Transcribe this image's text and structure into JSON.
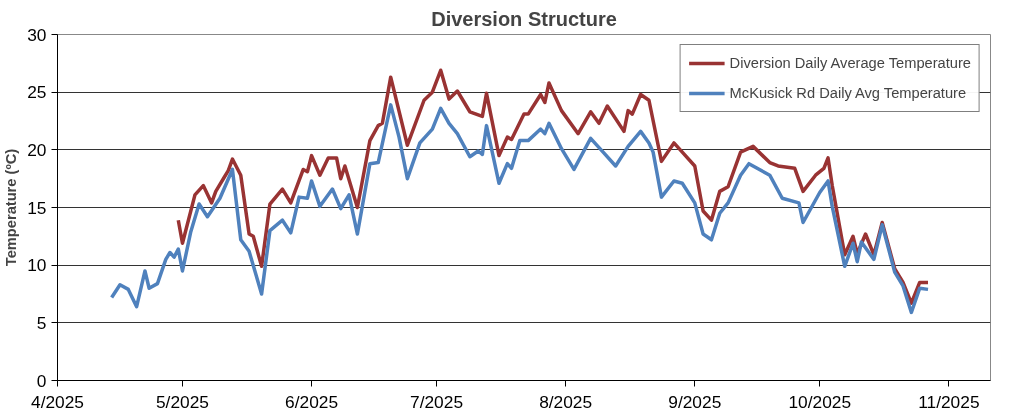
{
  "chart_data": {
    "type": "line",
    "title": "Diversion Structure",
    "ylabel": "Temperature (ºC)",
    "xlim": [
      "2025-04-01",
      "2025-11-11"
    ],
    "xticks": [
      {
        "value": "2025-04-01",
        "label": "4/2025"
      },
      {
        "value": "2025-05-01",
        "label": "5/2025"
      },
      {
        "value": "2025-06-01",
        "label": "6/2025"
      },
      {
        "value": "2025-07-01",
        "label": "7/2025"
      },
      {
        "value": "2025-08-01",
        "label": "8/2025"
      },
      {
        "value": "2025-09-01",
        "label": "9/2025"
      },
      {
        "value": "2025-10-01",
        "label": "10/2025"
      },
      {
        "value": "2025-11-01",
        "label": "11/2025"
      }
    ],
    "ylim": [
      0,
      30
    ],
    "yticks": [
      0,
      5,
      10,
      15,
      20,
      25,
      30
    ],
    "grid": "y",
    "legend": "top right",
    "series": [
      {
        "name": "Diversion Daily Average Temperature",
        "color": "#993333",
        "x": [
          "2025-04-30",
          "2025-05-01",
          "2025-05-04",
          "2025-05-06",
          "2025-05-08",
          "2025-05-09",
          "2025-05-11",
          "2025-05-12",
          "2025-05-13",
          "2025-05-15",
          "2025-05-17",
          "2025-05-18",
          "2025-05-20",
          "2025-05-22",
          "2025-05-25",
          "2025-05-27",
          "2025-05-30",
          "2025-05-31",
          "2025-06-01",
          "2025-06-03",
          "2025-06-05",
          "2025-06-07",
          "2025-06-08",
          "2025-06-09",
          "2025-06-12",
          "2025-06-15",
          "2025-06-17",
          "2025-06-18",
          "2025-06-20",
          "2025-06-24",
          "2025-06-28",
          "2025-06-30",
          "2025-07-02",
          "2025-07-04",
          "2025-07-06",
          "2025-07-09",
          "2025-07-12",
          "2025-07-13",
          "2025-07-16",
          "2025-07-18",
          "2025-07-19",
          "2025-07-22",
          "2025-07-23",
          "2025-07-26",
          "2025-07-27",
          "2025-07-28",
          "2025-07-31",
          "2025-08-04",
          "2025-08-07",
          "2025-08-09",
          "2025-08-11",
          "2025-08-15",
          "2025-08-16",
          "2025-08-17",
          "2025-08-19",
          "2025-08-21",
          "2025-08-24",
          "2025-08-27",
          "2025-08-29",
          "2025-09-01",
          "2025-09-03",
          "2025-09-05",
          "2025-09-07",
          "2025-09-09",
          "2025-09-12",
          "2025-09-15",
          "2025-09-19",
          "2025-09-21",
          "2025-09-25",
          "2025-09-27",
          "2025-09-30",
          "2025-10-02",
          "2025-10-03",
          "2025-10-04",
          "2025-10-07",
          "2025-10-09",
          "2025-10-10",
          "2025-10-12",
          "2025-10-14",
          "2025-10-16",
          "2025-10-19",
          "2025-10-21",
          "2025-10-23",
          "2025-10-25",
          "2025-10-27"
        ],
        "values": [
          13.9,
          11.9,
          16.1,
          16.9,
          15.4,
          16.4,
          17.6,
          18.2,
          19.2,
          17.8,
          12.7,
          12.5,
          9.9,
          15.3,
          16.6,
          15.4,
          18.3,
          18.1,
          19.5,
          17.8,
          19.3,
          19.3,
          17.5,
          18.6,
          15.0,
          20.8,
          22.1,
          22.3,
          26.3,
          20.4,
          24.3,
          25.0,
          26.9,
          24.4,
          25.1,
          23.3,
          22.9,
          24.9,
          19.5,
          21.1,
          20.9,
          23.1,
          23.1,
          24.8,
          24.1,
          25.8,
          23.4,
          21.4,
          23.3,
          22.3,
          23.8,
          21.6,
          23.4,
          23.1,
          24.8,
          24.3,
          19.0,
          20.6,
          19.8,
          18.6,
          14.7,
          13.9,
          16.4,
          16.8,
          19.8,
          20.3,
          18.9,
          18.6,
          18.4,
          16.4,
          17.8,
          18.4,
          19.3,
          16.9,
          10.9,
          12.5,
          11.0,
          12.7,
          10.9,
          13.7,
          9.7,
          8.5,
          6.7,
          8.5,
          8.5
        ]
      },
      {
        "name": "McKusick Rd Daily Avg Temperature",
        "color": "#4f81bd",
        "x": [
          "2025-04-14",
          "2025-04-16",
          "2025-04-18",
          "2025-04-20",
          "2025-04-22",
          "2025-04-23",
          "2025-04-25",
          "2025-04-27",
          "2025-04-28",
          "2025-04-29",
          "2025-04-30",
          "2025-05-01",
          "2025-05-03",
          "2025-05-05",
          "2025-05-07",
          "2025-05-10",
          "2025-05-13",
          "2025-05-15",
          "2025-05-17",
          "2025-05-20",
          "2025-05-22",
          "2025-05-25",
          "2025-05-27",
          "2025-05-29",
          "2025-05-31",
          "2025-06-01",
          "2025-06-03",
          "2025-06-06",
          "2025-06-08",
          "2025-06-10",
          "2025-06-12",
          "2025-06-15",
          "2025-06-17",
          "2025-06-20",
          "2025-06-22",
          "2025-06-24",
          "2025-06-27",
          "2025-06-30",
          "2025-07-02",
          "2025-07-04",
          "2025-07-06",
          "2025-07-09",
          "2025-07-11",
          "2025-07-12",
          "2025-07-13",
          "2025-07-16",
          "2025-07-18",
          "2025-07-19",
          "2025-07-21",
          "2025-07-23",
          "2025-07-26",
          "2025-07-27",
          "2025-07-28",
          "2025-07-31",
          "2025-08-03",
          "2025-08-07",
          "2025-08-10",
          "2025-08-13",
          "2025-08-16",
          "2025-08-19",
          "2025-08-21",
          "2025-08-22",
          "2025-08-24",
          "2025-08-27",
          "2025-08-29",
          "2025-09-01",
          "2025-09-03",
          "2025-09-05",
          "2025-09-07",
          "2025-09-09",
          "2025-09-12",
          "2025-09-14",
          "2025-09-19",
          "2025-09-22",
          "2025-09-26",
          "2025-09-27",
          "2025-09-29",
          "2025-10-01",
          "2025-10-03",
          "2025-10-04",
          "2025-10-07",
          "2025-10-09",
          "2025-10-10",
          "2025-10-11",
          "2025-10-14",
          "2025-10-16",
          "2025-10-19",
          "2025-10-21",
          "2025-10-23",
          "2025-10-25",
          "2025-10-27"
        ],
        "values": [
          7.2,
          8.3,
          7.9,
          6.4,
          9.5,
          8.0,
          8.4,
          10.5,
          11.1,
          10.7,
          11.4,
          9.5,
          12.9,
          15.3,
          14.2,
          15.8,
          18.3,
          12.2,
          11.2,
          7.5,
          13.0,
          13.9,
          12.8,
          15.9,
          15.8,
          17.3,
          15.1,
          16.6,
          14.9,
          16.1,
          12.7,
          18.8,
          18.9,
          23.9,
          21.1,
          17.5,
          20.6,
          21.8,
          23.6,
          22.3,
          21.4,
          19.4,
          19.9,
          19.6,
          22.1,
          17.1,
          18.8,
          18.4,
          20.8,
          20.8,
          21.8,
          21.4,
          22.3,
          20.1,
          18.3,
          21.0,
          19.8,
          18.6,
          20.3,
          21.6,
          20.6,
          19.8,
          15.9,
          17.3,
          17.1,
          15.4,
          12.7,
          12.2,
          14.5,
          15.4,
          17.8,
          18.8,
          17.8,
          15.8,
          15.4,
          13.7,
          15.0,
          16.3,
          17.3,
          15.1,
          9.9,
          11.9,
          10.3,
          12.0,
          10.5,
          13.5,
          9.4,
          8.2,
          5.9,
          8.0,
          7.9
        ]
      }
    ]
  }
}
